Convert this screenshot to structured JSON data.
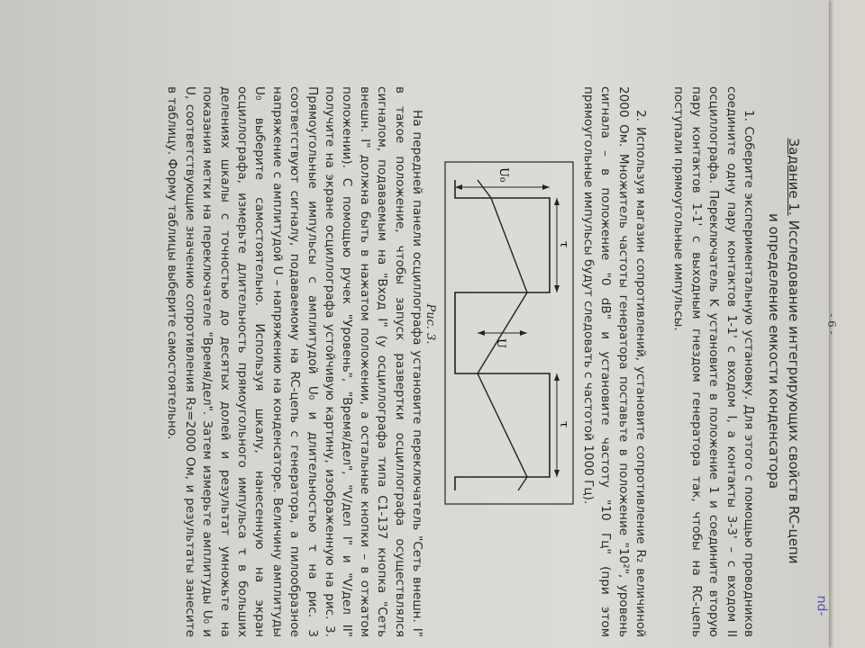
{
  "page_number": "- 6 -",
  "task": {
    "label": "Задание 1.",
    "title_line1": "Исследование интегрирующих свойств RC-цепи",
    "title_line2": "и определение емкости конденсатора"
  },
  "para1": "1. Соберите экспериментальную установку. Для этого с помощью проводников соедините одну пару контактов 1-1' с входом I, а контакты 3-3' – с входом II осциллографа. Переключатель K установите в положение 1 и соедините вторую пару контактов 1-1' с выходным гнездом генератора так, чтобы на RC-цепь поступали прямоугольные импульсы.",
  "para2": "2. Используя магазин сопротивлений, установите сопротивление R₂ величиной 2000 Ом. Множитель частоты генератора поставьте в положение \"10²\", уровень сигнала – в положение \"0 dB\" и установите частоту \"10 Гц\" (при этом прямоугольные импульсы будут следовать с частотой 1000 Гц).",
  "figure": {
    "caption": "Рис. 3.",
    "labels": {
      "u0": "U₀",
      "u": "U",
      "tau1": "τ",
      "tau2": "τ"
    }
  },
  "para3": "На передней панели осциллографа установите переключатель \"Сеть внешн. I\" в такое положение, чтобы запуск развертки осциллографа осуществлялся сигналом, подаваемым на \"Вход I\" (у осциллографа типа С1-137 кнопка \"Сеть внешн. I\" должна быть в нажатом положении, а остальные кнопки – в отжатом положении). С помощью ручек \"Уровень\", \"Время/дел\", \"V/дел I\" и \"V/дел II\" получите на экране осциллографа устойчивую картину, изображенную на рис. 3. Прямоугольные импульсы с амплитудой U₀ и длительностью τ на рис. 3 соответствуют сигналу, подаваемому на RC-цепь с генератора, а пилообразное напряжение с амплитудой U – напряжению на конденсаторе. Величину амплитуды U₀ выберите самостоятельно. Используя шкалу, нанесенную на экран осциллографа, измерьте длительность прямоугольного импульса τ в больших делениях шкалы с точностью до десятых долей и результат умножьте на показания метки на переключателе \"Время/дел\". Затем измерьте амплитуды U₀ и U, соответствующие значению сопротивления R₂=2000 Ом, и результаты занесите в таблицу. Форму таблицы выберите самостоятельно.",
  "scribble": "nd-"
}
